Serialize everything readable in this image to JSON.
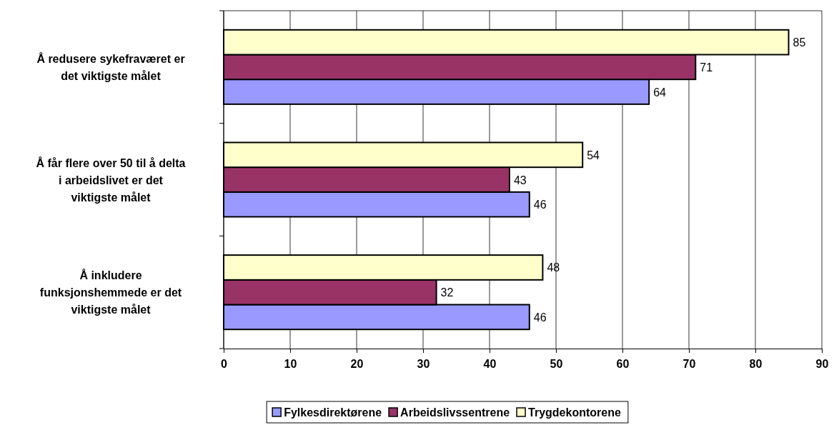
{
  "chart_data": {
    "type": "bar",
    "orientation": "horizontal",
    "categories": [
      "Å redusere sykefraværet er det viktigste målet",
      "Å får flere over 50 til å delta i arbeidslivet er det viktigste målet",
      "Å inkludere funksjonshemmede er det viktigste målet"
    ],
    "series": [
      {
        "name": "Fylkesdirektørene",
        "color": "#9999ff",
        "values": [
          64,
          46,
          46
        ]
      },
      {
        "name": "Arbeidslivssentrene",
        "color": "#993366",
        "values": [
          71,
          43,
          32
        ]
      },
      {
        "name": "Trygdekontorene",
        "color": "#ffffcc",
        "values": [
          85,
          54,
          48
        ]
      }
    ],
    "xlim": [
      0,
      90
    ],
    "xticks": [
      0,
      10,
      20,
      30,
      40,
      50,
      60,
      70,
      80,
      90
    ],
    "grid": "x",
    "data_labels": true,
    "legend": "bottom"
  }
}
